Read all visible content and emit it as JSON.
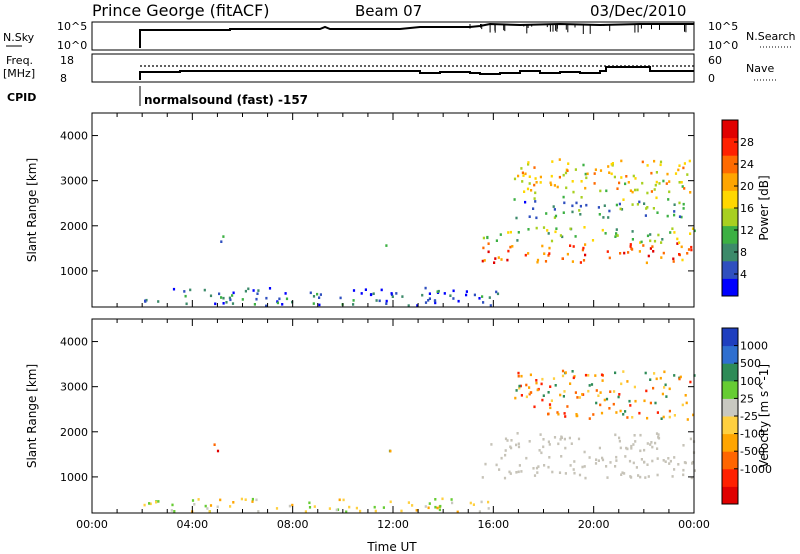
{
  "header": {
    "station": "Prince George (fitACF)",
    "beam": "Beam 07",
    "date": "03/Dec/2010"
  },
  "noise_panel": {
    "left_label": "N.Sky",
    "left_ticks": [
      "10^5",
      "10^0"
    ],
    "right_label": "N.Search",
    "right_ticks": [
      "10^5",
      "10^0"
    ]
  },
  "freq_panel": {
    "left_label_1": "Freq.",
    "left_label_2": "[MHz]",
    "left_ticks": [
      "18",
      "8"
    ],
    "right_label": "Nave",
    "right_ticks": [
      "60",
      "0"
    ]
  },
  "cpid": {
    "label": "CPID",
    "value": "normalsound (fast) -157"
  },
  "colors": {
    "power": [
      "#0000ff",
      "#2f4fbf",
      "#3c8a6a",
      "#3cb043",
      "#a8d020",
      "#ffd700",
      "#ffa500",
      "#ff6a00",
      "#ff2000",
      "#e00000"
    ],
    "velocity": [
      "#1f3fbf",
      "#2f6fd0",
      "#2e8b57",
      "#66cc33",
      "#c8c8c0",
      "#ffd040",
      "#ffa500",
      "#ff6600",
      "#ff2000",
      "#e00000"
    ],
    "ground_scatter": "#c6c3b8"
  },
  "chart_data": [
    {
      "type": "heatmap",
      "name": "power",
      "ylabel": "Slant Range [km]",
      "y_ticks": [
        "1000",
        "2000",
        "3000",
        "4000"
      ],
      "ylim": [
        200,
        4500
      ],
      "xlim": [
        "00:00",
        "24:00"
      ],
      "colorbar_label": "Power [dB]",
      "colorbar_ticks": [
        "4",
        "8",
        "12",
        "16",
        "20",
        "24",
        "28"
      ],
      "colorbar_range": [
        0,
        32
      ],
      "echo_regions": [
        {
          "t0": 2.0,
          "t1": 16.2,
          "r0": 250,
          "r1": 650,
          "level": 5
        },
        {
          "t0": 3.8,
          "t1": 4.4,
          "r0": 550,
          "r1": 650,
          "level": 7
        },
        {
          "t0": 4.8,
          "t1": 5.2,
          "r0": 1550,
          "r1": 1850,
          "level": 9
        },
        {
          "t0": 11.6,
          "t1": 12.0,
          "r0": 1550,
          "r1": 1750,
          "level": 10
        },
        {
          "t0": 15.5,
          "t1": 24.0,
          "r0": 1200,
          "r1": 1650,
          "level": 25
        },
        {
          "t0": 15.5,
          "t1": 24.0,
          "r0": 1650,
          "r1": 2000,
          "level": 13
        },
        {
          "t0": 16.8,
          "t1": 24.0,
          "r0": 2200,
          "r1": 2600,
          "level": 9
        },
        {
          "t0": 16.8,
          "t1": 24.0,
          "r0": 2600,
          "r1": 3500,
          "level": 18
        }
      ]
    },
    {
      "type": "heatmap",
      "name": "velocity",
      "ylabel": "Slant Range [km]",
      "y_ticks": [
        "1000",
        "2000",
        "3000",
        "4000"
      ],
      "ylim": [
        200,
        4500
      ],
      "xlim": [
        "00:00",
        "24:00"
      ],
      "xlabel": "Time UT",
      "x_ticks": [
        "00:00",
        "04:00",
        "08:00",
        "12:00",
        "16:00",
        "20:00",
        "00:00"
      ],
      "colorbar_label": "Velocity [m s^-1]",
      "colorbar_ticks": [
        "1000",
        "500",
        "100",
        "25",
        "-25",
        "-100",
        "-500",
        "-1000"
      ],
      "echo_regions": [
        {
          "t0": 2.0,
          "t1": 16.2,
          "r0": 250,
          "r1": 550,
          "kind": "low"
        },
        {
          "t0": 4.8,
          "t1": 5.2,
          "r0": 1500,
          "r1": 1850,
          "kind": "neg"
        },
        {
          "t0": 11.6,
          "t1": 12.0,
          "r0": 1500,
          "r1": 1750,
          "kind": "mixed"
        },
        {
          "t0": 15.5,
          "t1": 24.0,
          "r0": 1000,
          "r1": 2000,
          "kind": "ground"
        },
        {
          "t0": 16.8,
          "t1": 24.0,
          "r0": 2300,
          "r1": 3400,
          "kind": "neg_pos"
        }
      ]
    }
  ]
}
